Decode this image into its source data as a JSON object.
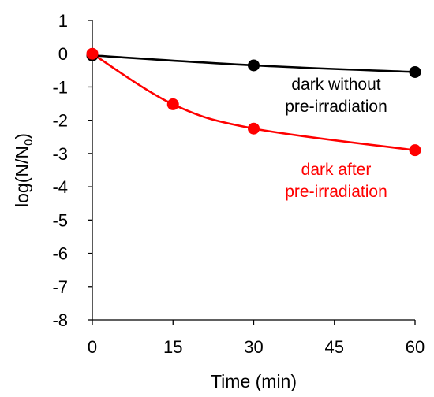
{
  "chart_data": {
    "type": "line",
    "title": "",
    "xlabel": "Time (min)",
    "ylabel_main": "log(N/N",
    "ylabel_sub": "0",
    "ylabel_close": ")",
    "xlim": [
      0,
      60
    ],
    "ylim": [
      -8,
      1
    ],
    "xticks": [
      0,
      15,
      30,
      45,
      60
    ],
    "yticks": [
      1,
      0,
      -1,
      -2,
      -3,
      -4,
      -5,
      -6,
      -7,
      -8
    ],
    "grid": false,
    "series": [
      {
        "color": "#000000",
        "x": [
          0,
          30,
          60
        ],
        "y": [
          -0.05,
          -0.35,
          -0.55
        ],
        "annotation": [
          "dark without",
          "pre-irradiation"
        ]
      },
      {
        "color": "#ff0000",
        "x": [
          0,
          15,
          30,
          60
        ],
        "y": [
          0.0,
          -1.52,
          -2.25,
          -2.9
        ],
        "annotation": [
          "dark after",
          "pre-irradiation"
        ]
      }
    ]
  }
}
